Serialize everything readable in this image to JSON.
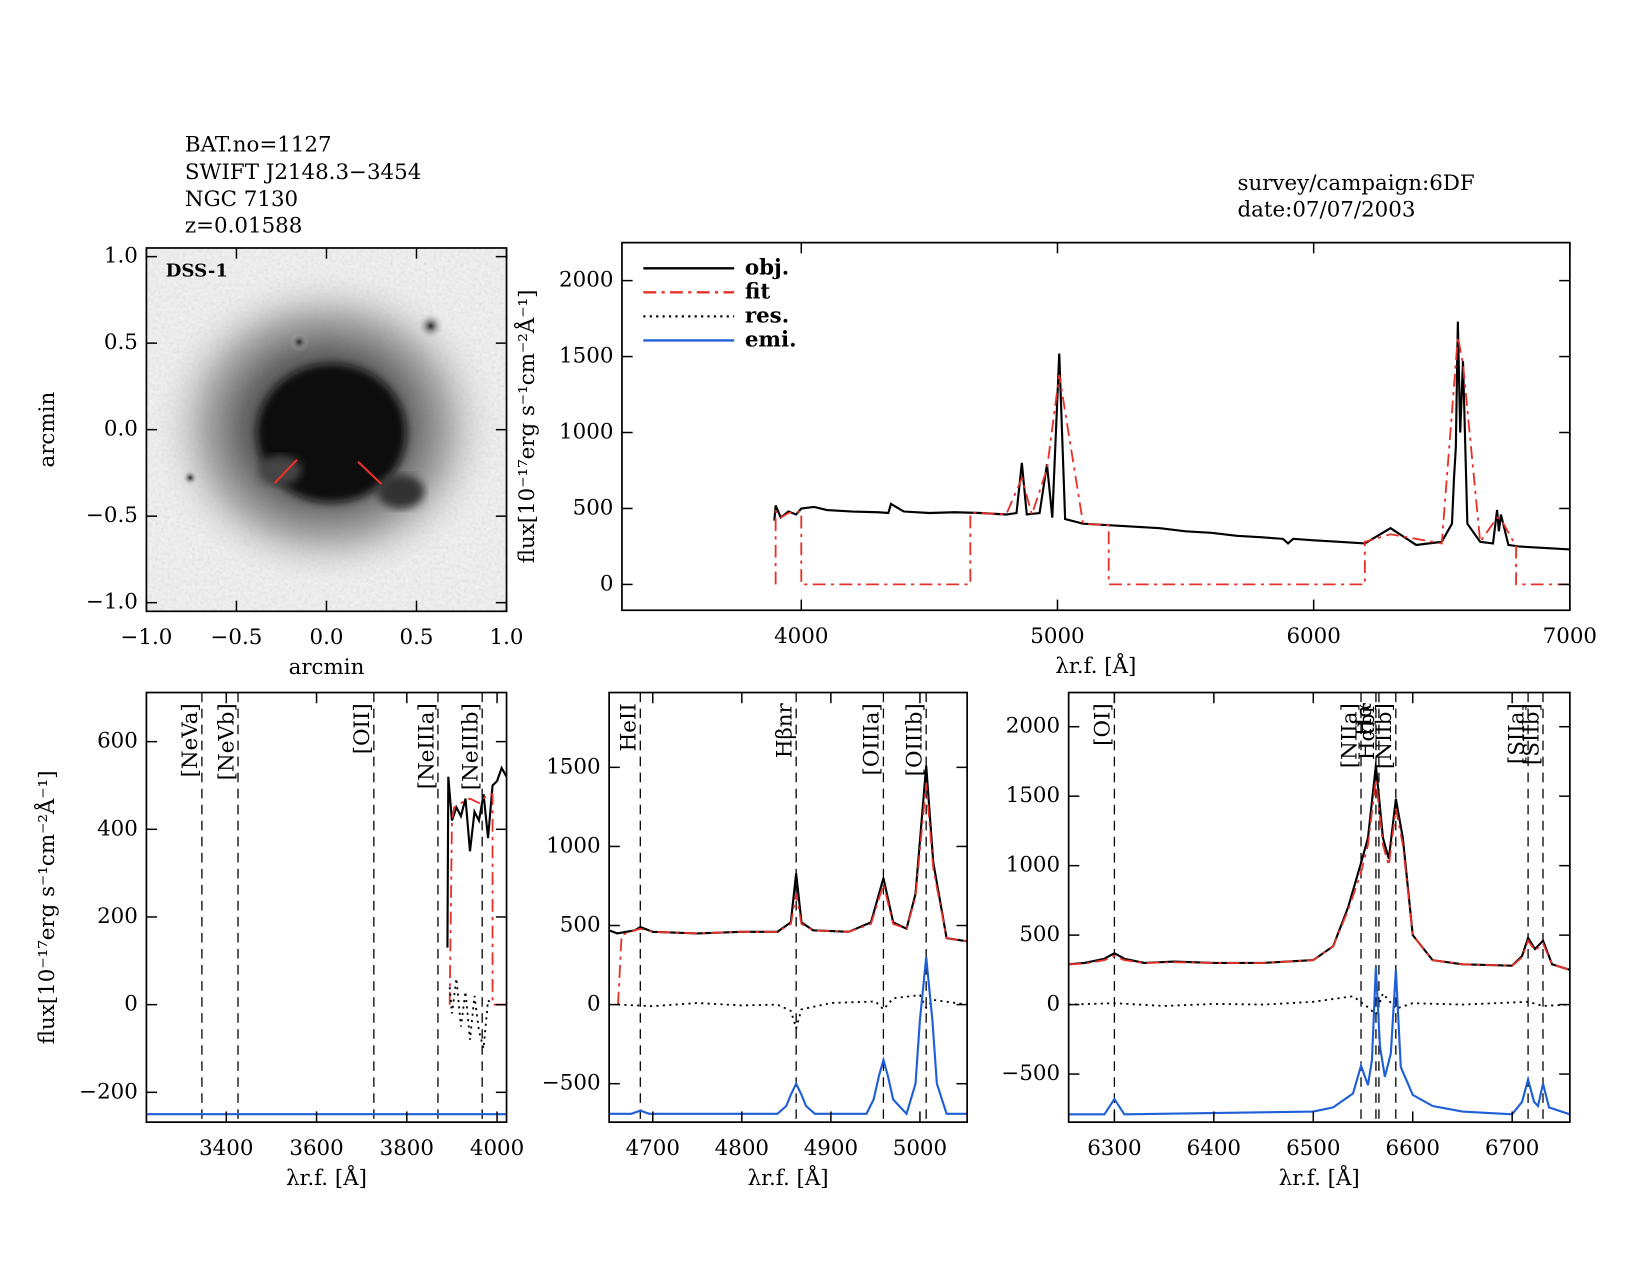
{
  "header": {
    "left": [
      "BAT.no=1127",
      "SWIFT J2148.3−3454",
      "NGC 7130",
      "z=0.01588"
    ],
    "right": [
      "survey/campaign:6DF",
      "date:07/07/2003"
    ]
  },
  "chart_data": [
    {
      "type": "image",
      "label": "DSS-1",
      "xlabel": "arcmin",
      "ylabel": "arcmin",
      "xlim": [
        -1,
        1
      ],
      "ylim": [
        -1.05,
        1.05
      ],
      "xticks": [
        {
          "value": -1,
          "label": "−1.0"
        },
        {
          "value": -0.5,
          "label": "−0.5"
        },
        {
          "value": 0,
          "label": "0.0"
        },
        0.5,
        {
          "value": 1,
          "label": "1.0"
        }
      ],
      "yticks": [
        {
          "value": -1,
          "label": "−1.0"
        },
        {
          "value": -0.5,
          "label": "−0.5"
        },
        {
          "value": 0,
          "label": "0.0"
        },
        0.5,
        {
          "value": 1,
          "label": "1.0"
        }
      ]
    },
    {
      "type": "line",
      "xlabel": "λr.f. [Å]",
      "ylabel": "flux[10⁻¹⁷erg s⁻¹cm⁻²Å⁻¹]",
      "xlim": [
        3300,
        7000
      ],
      "ylim": [
        -170,
        2250
      ],
      "xticks": [
        4000,
        5000,
        6000,
        7000
      ],
      "yticks": [
        0,
        500,
        1000,
        1500,
        2000
      ],
      "legend": {
        "loc": "upper left",
        "entries": [
          {
            "name": "obj.",
            "color": "#000000",
            "style": "solid"
          },
          {
            "name": "fit",
            "color": "#e8302a",
            "style": "dashdot"
          },
          {
            "name": "res.",
            "color": "#000000",
            "style": "dotted"
          },
          {
            "name": "emi.",
            "color": "#1f5fd6",
            "style": "solid"
          }
        ]
      },
      "series": [
        {
          "name": "obj.",
          "color": "#000000",
          "style": "solid",
          "x": [
            3895,
            3900,
            3920,
            3950,
            3980,
            4000,
            4050,
            4100,
            4200,
            4300,
            4340,
            4350,
            4400,
            4500,
            4600,
            4700,
            4800,
            4840,
            4861,
            4880,
            4930,
            4959,
            4980,
            5007,
            5030,
            5100,
            5200,
            5300,
            5400,
            5500,
            5600,
            5700,
            5800,
            5880,
            5900,
            5920,
            6000,
            6100,
            6200,
            6300,
            6400,
            6500,
            6540,
            6548,
            6555,
            6563,
            6572,
            6583,
            6600,
            6650,
            6700,
            6716,
            6723,
            6731,
            6760,
            6800,
            6900,
            7000
          ],
          "values": [
            420,
            520,
            440,
            480,
            460,
            500,
            510,
            490,
            480,
            475,
            470,
            530,
            480,
            470,
            475,
            470,
            460,
            470,
            800,
            460,
            470,
            790,
            440,
            1520,
            430,
            400,
            390,
            380,
            370,
            350,
            340,
            320,
            310,
            300,
            270,
            300,
            290,
            280,
            270,
            370,
            260,
            280,
            400,
            700,
            900,
            1730,
            1000,
            1470,
            400,
            280,
            270,
            490,
            350,
            460,
            260,
            250,
            240,
            230
          ]
        },
        {
          "name": "fit",
          "color": "#e8302a",
          "style": "dashdot",
          "x": [
            3900,
            3900,
            3920,
            3950,
            4000,
            4000,
            4660,
            4660,
            4700,
            4800,
            4861,
            4900,
            4959,
            5007,
            5100,
            5200,
            5200,
            6200,
            6200,
            6300,
            6500,
            6563,
            6583,
            6650,
            6716,
            6731,
            6790,
            6790,
            7000
          ],
          "values": [
            0,
            480,
            440,
            470,
            480,
            0,
            0,
            470,
            470,
            460,
            700,
            460,
            760,
            1380,
            400,
            390,
            0,
            0,
            280,
            330,
            270,
            1630,
            1450,
            280,
            440,
            430,
            250,
            0,
            0
          ]
        }
      ]
    },
    {
      "type": "line",
      "xlabel": "λr.f. [Å]",
      "ylabel": "flux[10⁻¹⁷erg s⁻¹cm⁻²Å⁻¹]",
      "xlim": [
        3223,
        4021
      ],
      "ylim": [
        -268,
        712
      ],
      "xticks": [
        3400,
        3600,
        3800,
        4000
      ],
      "yticks": [
        {
          "value": -200,
          "label": "−200"
        },
        0,
        200,
        400,
        600
      ],
      "lines": [
        {
          "label": "[NeVa]",
          "x": 3346,
          "color": "#e8302a"
        },
        {
          "label": "[NeVb]",
          "x": 3426,
          "color": "#e8302a"
        },
        {
          "label": "[OII]",
          "x": 3727,
          "color": "#e8302a"
        },
        {
          "label": "[NeIIIa]",
          "x": 3869,
          "color": "#e8302a"
        },
        {
          "label": "[NeIIIb]",
          "x": 3967,
          "color": "#e8302a"
        }
      ],
      "series": [
        {
          "name": "obj.",
          "color": "#000000",
          "style": "solid",
          "x": [
            3890,
            3892,
            3900,
            3910,
            3920,
            3930,
            3940,
            3950,
            3960,
            3970,
            3980,
            3990,
            4000,
            4010,
            4021
          ],
          "values": [
            130,
            520,
            420,
            450,
            430,
            470,
            350,
            440,
            420,
            480,
            380,
            500,
            510,
            540,
            520
          ]
        },
        {
          "name": "fit",
          "color": "#e8302a",
          "style": "dashdot",
          "x": [
            3895,
            3900,
            3905,
            3920,
            3940,
            3960,
            3980,
            3990,
            3990,
            4021
          ],
          "values": [
            0,
            420,
            450,
            460,
            470,
            460,
            480,
            480,
            0,
            0
          ]
        },
        {
          "name": "res.",
          "color": "#000000",
          "style": "dotted",
          "x": [
            3895,
            3900,
            3910,
            3920,
            3930,
            3940,
            3950,
            3960,
            3970,
            3980,
            3990
          ],
          "values": [
            40,
            -20,
            60,
            -50,
            30,
            -80,
            20,
            -60,
            -100,
            10,
            0
          ]
        },
        {
          "name": "emi.",
          "color": "#1f5fd6",
          "style": "solid",
          "x": [
            3223,
            4021
          ],
          "values": [
            -250,
            -250
          ]
        }
      ]
    },
    {
      "type": "line",
      "xlabel": "λr.f. [Å]",
      "xlim": [
        4651,
        5053
      ],
      "ylim": [
        -743,
        1973
      ],
      "xticks": [
        4700,
        4800,
        4900,
        5000
      ],
      "yticks": [
        {
          "value": -500,
          "label": "−500"
        },
        0,
        500,
        1000,
        1500
      ],
      "lines": [
        {
          "label": "HeII",
          "x": 4686,
          "color": "#e8302a"
        },
        {
          "label": "Hβnr",
          "x": 4861,
          "color": "#000000"
        },
        {
          "label": "[OIIIa]",
          "x": 4959,
          "color": "#000000"
        },
        {
          "label": "[OIIIb]",
          "x": 5007,
          "color": "#000000"
        }
      ],
      "series": [
        {
          "name": "obj.",
          "color": "#000000",
          "style": "solid",
          "x": [
            4651,
            4660,
            4680,
            4686,
            4700,
            4750,
            4800,
            4840,
            4855,
            4861,
            4867,
            4880,
            4920,
            4945,
            4959,
            4970,
            4985,
            4995,
            5007,
            5015,
            5030,
            5053
          ],
          "values": [
            470,
            450,
            470,
            490,
            460,
            450,
            460,
            460,
            520,
            830,
            520,
            470,
            460,
            520,
            800,
            520,
            480,
            700,
            1510,
            900,
            420,
            400
          ]
        },
        {
          "name": "fit",
          "color": "#e8302a",
          "style": "dashdot",
          "x": [
            4661,
            4665,
            4680,
            4686,
            4700,
            4750,
            4800,
            4840,
            4855,
            4861,
            4867,
            4880,
            4920,
            4945,
            4959,
            4970,
            4985,
            4995,
            5007,
            5015,
            5030,
            5053
          ],
          "values": [
            0,
            440,
            470,
            480,
            460,
            450,
            460,
            460,
            510,
            700,
            510,
            470,
            460,
            510,
            760,
            510,
            480,
            680,
            1400,
            860,
            420,
            400
          ]
        },
        {
          "name": "res.",
          "color": "#000000",
          "style": "dotted",
          "x": [
            4661,
            4700,
            4750,
            4800,
            4840,
            4855,
            4861,
            4867,
            4900,
            4950,
            4959,
            4970,
            5000,
            5007,
            5015,
            5053
          ],
          "values": [
            0,
            -10,
            10,
            -5,
            0,
            -40,
            -150,
            -30,
            10,
            20,
            -30,
            40,
            60,
            -20,
            30,
            0
          ]
        },
        {
          "name": "emi.",
          "color": "#1f5fd6",
          "style": "solid",
          "x": [
            4651,
            4676,
            4686,
            4696,
            4840,
            4850,
            4855,
            4861,
            4867,
            4872,
            4882,
            4940,
            4948,
            4954,
            4959,
            4964,
            4970,
            4985,
            4995,
            5000,
            5007,
            5014,
            5019,
            5030,
            5053
          ],
          "values": [
            -690,
            -690,
            -670,
            -690,
            -690,
            -640,
            -570,
            -500,
            -570,
            -640,
            -690,
            -690,
            -600,
            -450,
            -350,
            -450,
            -600,
            -690,
            -500,
            -100,
            300,
            -100,
            -500,
            -690,
            -690
          ]
        }
      ]
    },
    {
      "type": "line",
      "xlabel": "λr.f. [Å]",
      "xlim": [
        6254,
        6758
      ],
      "ylim": [
        -846,
        2246
      ],
      "xticks": [
        6300,
        6400,
        6500,
        6600,
        6700
      ],
      "yticks": [
        {
          "value": -500,
          "label": "−500"
        },
        0,
        500,
        1000,
        1500,
        2000
      ],
      "lines": [
        {
          "label": "[OI]",
          "x": 6300,
          "color": "#000000"
        },
        {
          "label": "[NIIa]",
          "x": 6548,
          "color": "#000000"
        },
        {
          "label": "Hα",
          "x": 6563,
          "color": "#000000"
        },
        {
          "label": "Hαbr",
          "x": 6566,
          "color": "#000000"
        },
        {
          "label": "[NIIb]",
          "x": 6583,
          "color": "#000000"
        },
        {
          "label": "[SIIa]",
          "x": 6716,
          "color": "#000000"
        },
        {
          "label": "[SIIb]",
          "x": 6731,
          "color": "#000000"
        }
      ],
      "series": [
        {
          "name": "obj.",
          "color": "#000000",
          "style": "solid",
          "x": [
            6254,
            6270,
            6290,
            6300,
            6310,
            6330,
            6360,
            6400,
            6450,
            6500,
            6520,
            6535,
            6548,
            6555,
            6563,
            6570,
            6576,
            6583,
            6590,
            6600,
            6620,
            6650,
            6700,
            6710,
            6716,
            6723,
            6731,
            6740,
            6758
          ],
          "values": [
            290,
            300,
            330,
            370,
            330,
            300,
            310,
            300,
            300,
            320,
            420,
            700,
            1020,
            1200,
            1720,
            1200,
            1050,
            1480,
            1200,
            500,
            320,
            290,
            280,
            350,
            480,
            400,
            460,
            290,
            250
          ]
        },
        {
          "name": "fit",
          "color": "#e8302a",
          "style": "dashdot",
          "x": [
            6254,
            6270,
            6290,
            6300,
            6310,
            6330,
            6360,
            6400,
            6450,
            6500,
            6520,
            6535,
            6548,
            6555,
            6563,
            6570,
            6576,
            6583,
            6590,
            6600,
            6620,
            6650,
            6700,
            6710,
            6716,
            6723,
            6731,
            6740,
            6758
          ],
          "values": [
            290,
            295,
            320,
            350,
            320,
            300,
            305,
            300,
            300,
            320,
            420,
            680,
            950,
            1150,
            1620,
            1150,
            1000,
            1410,
            1150,
            500,
            320,
            290,
            280,
            340,
            460,
            390,
            440,
            290,
            250
          ]
        },
        {
          "name": "res.",
          "color": "#000000",
          "style": "dotted",
          "x": [
            6254,
            6300,
            6350,
            6400,
            6450,
            6500,
            6540,
            6555,
            6563,
            6570,
            6583,
            6600,
            6650,
            6716,
            6731,
            6758
          ],
          "values": [
            0,
            10,
            -10,
            5,
            0,
            20,
            60,
            -20,
            -70,
            80,
            -30,
            10,
            0,
            20,
            -10,
            0
          ]
        },
        {
          "name": "emi.",
          "color": "#1f5fd6",
          "style": "solid",
          "x": [
            6254,
            6290,
            6300,
            6310,
            6500,
            6520,
            6540,
            6548,
            6555,
            6559,
            6563,
            6567,
            6572,
            6578,
            6583,
            6588,
            6600,
            6620,
            6650,
            6700,
            6710,
            6716,
            6722,
            6726,
            6731,
            6737,
            6758
          ],
          "values": [
            -790,
            -790,
            -680,
            -790,
            -770,
            -740,
            -640,
            -440,
            -580,
            -400,
            270,
            -300,
            -520,
            -350,
            250,
            -450,
            -650,
            -730,
            -770,
            -790,
            -700,
            -540,
            -700,
            -730,
            -570,
            -740,
            -790
          ]
        }
      ]
    }
  ]
}
